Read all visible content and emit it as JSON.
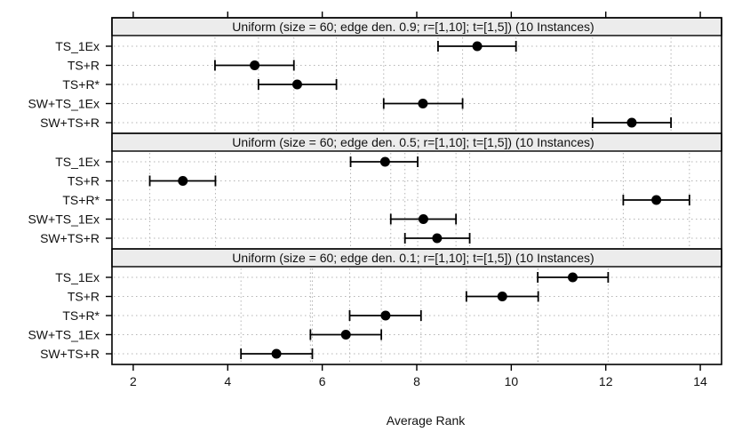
{
  "chart_data": {
    "type": "dot-with-error-bars",
    "xlabel": "Average Rank",
    "xlim": [
      1.55,
      14.45
    ],
    "x_ticks": [
      2,
      4,
      6,
      8,
      10,
      12,
      14
    ],
    "x_tick_labels": [
      "2",
      "4",
      "6",
      "8",
      "10",
      "12",
      "14"
    ],
    "categories": [
      "TS_1Ex",
      "TS+R",
      "TS+R*",
      "SW+TS_1Ex",
      "SW+TS+R"
    ],
    "panels": [
      {
        "title": "Uniform (size = 60; edge den. 0.9; r=[1,10]; t=[1,5])",
        "instances": "(10 Instances)",
        "points": [
          {
            "label": "TS_1Ex",
            "mean": 9.28,
            "lower": 8.45,
            "upper": 10.1
          },
          {
            "label": "TS+R",
            "mean": 4.57,
            "lower": 3.73,
            "upper": 5.4
          },
          {
            "label": "TS+R*",
            "mean": 5.47,
            "lower": 4.65,
            "upper": 6.3
          },
          {
            "label": "SW+TS_1Ex",
            "mean": 8.13,
            "lower": 7.3,
            "upper": 8.97
          },
          {
            "label": "SW+TS+R",
            "mean": 12.55,
            "lower": 11.72,
            "upper": 13.38
          }
        ]
      },
      {
        "title": "Uniform (size = 60; edge den. 0.5; r=[1,10]; t=[1,5])",
        "instances": "(10 Instances)",
        "points": [
          {
            "label": "TS_1Ex",
            "mean": 7.33,
            "lower": 6.6,
            "upper": 8.02
          },
          {
            "label": "TS+R",
            "mean": 3.05,
            "lower": 2.35,
            "upper": 3.74
          },
          {
            "label": "TS+R*",
            "mean": 13.07,
            "lower": 12.37,
            "upper": 13.77
          },
          {
            "label": "SW+TS_1Ex",
            "mean": 8.14,
            "lower": 7.45,
            "upper": 8.83
          },
          {
            "label": "SW+TS+R",
            "mean": 8.43,
            "lower": 7.75,
            "upper": 9.12
          }
        ]
      },
      {
        "title": "Uniform (size = 60; edge den. 0.1; r=[1,10]; t=[1,5])",
        "instances": "(10 Instances)",
        "points": [
          {
            "label": "TS_1Ex",
            "mean": 11.3,
            "lower": 10.56,
            "upper": 12.05
          },
          {
            "label": "TS+R",
            "mean": 9.81,
            "lower": 9.05,
            "upper": 10.57
          },
          {
            "label": "TS+R*",
            "mean": 7.34,
            "lower": 6.58,
            "upper": 8.09
          },
          {
            "label": "SW+TS_1Ex",
            "mean": 6.5,
            "lower": 5.75,
            "upper": 7.25
          },
          {
            "label": "SW+TS+R",
            "mean": 5.03,
            "lower": 4.28,
            "upper": 5.79
          }
        ]
      }
    ],
    "grid": true,
    "legend": "none",
    "colors": {
      "point": "#000000",
      "strip_bg": "#ececec",
      "grid": "#b5b5b5",
      "frame": "#000000"
    }
  }
}
